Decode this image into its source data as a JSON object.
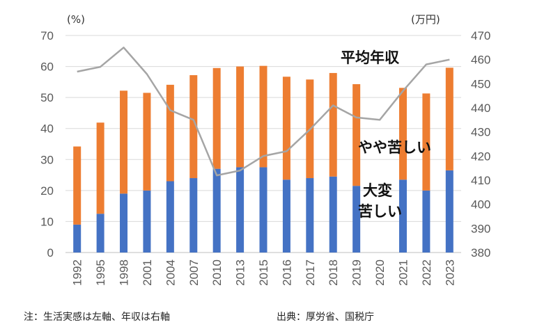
{
  "chart_data": {
    "type": "bar",
    "stacked": true,
    "categories": [
      "1992",
      "1995",
      "1998",
      "2001",
      "2004",
      "2007",
      "2010",
      "2013",
      "2015",
      "2016",
      "2017",
      "2018",
      "2019",
      "2020",
      "2021",
      "2022",
      "2023"
    ],
    "series": [
      {
        "name": "大変苦しい",
        "axis": "left",
        "color": "#4472C4",
        "values": [
          9,
          12.5,
          19,
          20,
          23,
          24,
          27,
          27.5,
          27.5,
          23.5,
          24,
          24.5,
          21.5,
          null,
          23.5,
          20,
          26.5
        ]
      },
      {
        "name": "やや苦しい",
        "axis": "left",
        "color": "#ED7D31",
        "values": [
          25.2,
          29.4,
          33.2,
          31.5,
          31.1,
          33.2,
          32.5,
          32.5,
          32.7,
          33.2,
          31.8,
          33.4,
          32.8,
          null,
          29.6,
          31.3,
          33.1
        ]
      },
      {
        "name": "平均年収",
        "axis": "right",
        "type": "line",
        "color": "#A5A5A5",
        "values": [
          455,
          457,
          465,
          454,
          439,
          435,
          412,
          414,
          420,
          422,
          431,
          441,
          436,
          435,
          447,
          458,
          460
        ]
      }
    ],
    "y_left": {
      "unit": "(%)",
      "min": 0,
      "max": 70,
      "ticks": [
        "0",
        "10",
        "20",
        "30",
        "40",
        "50",
        "60",
        "70"
      ]
    },
    "y_right": {
      "unit": "(万円)",
      "min": 380,
      "max": 470,
      "ticks": [
        "380",
        "390",
        "400",
        "410",
        "420",
        "430",
        "440",
        "450",
        "460",
        "470"
      ]
    },
    "annotations": {
      "line_label": "平均年収",
      "orange_label": "やや苦しい",
      "blue_label_1": "大変",
      "blue_label_2": "苦しい"
    },
    "grid": true,
    "legend": "none"
  },
  "footer": {
    "note": "注：生活実感は左軸、年収は右軸",
    "source": "出典：厚労省、国税庁"
  }
}
